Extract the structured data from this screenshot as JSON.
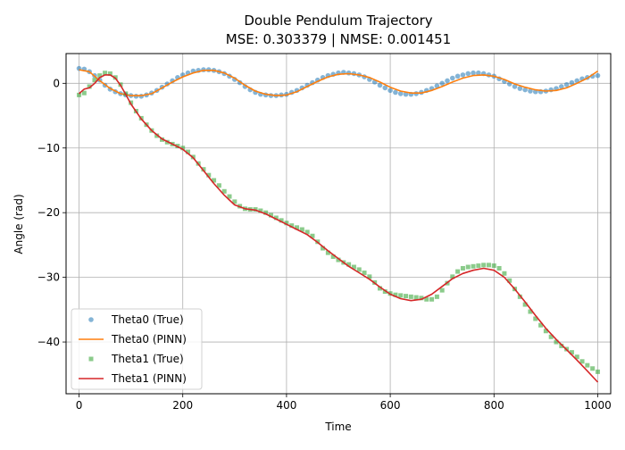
{
  "chart_data": {
    "type": "line",
    "title": "Double Pendulum Trajectory",
    "subtitle": "MSE: 0.303379 | NMSE: 0.001451",
    "xlabel": "Time",
    "ylabel": "Angle (rad)",
    "xlim": [
      -25,
      1025
    ],
    "ylim": [
      -48,
      4.6
    ],
    "xticks": [
      0,
      200,
      400,
      600,
      800,
      1000
    ],
    "yticks": [
      0,
      -10,
      -20,
      -30,
      -40
    ],
    "grid": true,
    "legend_position": "lower-left",
    "series": [
      {
        "name": "Theta0 (True)",
        "style": "markers",
        "color": "#1f77b4",
        "x": [
          0,
          10,
          20,
          30,
          40,
          50,
          60,
          70,
          80,
          90,
          100,
          110,
          120,
          130,
          140,
          150,
          160,
          170,
          180,
          190,
          200,
          210,
          220,
          230,
          240,
          250,
          260,
          270,
          280,
          290,
          300,
          310,
          320,
          330,
          340,
          350,
          360,
          370,
          380,
          390,
          400,
          410,
          420,
          430,
          440,
          450,
          460,
          470,
          480,
          490,
          500,
          510,
          520,
          530,
          540,
          550,
          560,
          570,
          580,
          590,
          600,
          610,
          620,
          630,
          640,
          650,
          660,
          670,
          680,
          690,
          700,
          710,
          720,
          730,
          740,
          750,
          760,
          770,
          780,
          790,
          800,
          810,
          820,
          830,
          840,
          850,
          860,
          870,
          880,
          890,
          900,
          910,
          920,
          930,
          940,
          950,
          960,
          970,
          980,
          990,
          1000
        ],
        "y": [
          2.3,
          2.2,
          1.8,
          1.2,
          0.5,
          -0.3,
          -0.9,
          -1.3,
          -1.6,
          -1.8,
          -1.9,
          -2.0,
          -2.0,
          -1.8,
          -1.5,
          -1.1,
          -0.6,
          -0.1,
          0.4,
          0.9,
          1.3,
          1.6,
          1.9,
          2.0,
          2.1,
          2.1,
          2.0,
          1.8,
          1.5,
          1.1,
          0.6,
          0.1,
          -0.5,
          -1.0,
          -1.4,
          -1.7,
          -1.8,
          -1.9,
          -1.9,
          -1.8,
          -1.7,
          -1.4,
          -1.1,
          -0.7,
          -0.3,
          0.1,
          0.5,
          0.9,
          1.2,
          1.4,
          1.6,
          1.7,
          1.6,
          1.5,
          1.3,
          1.0,
          0.6,
          0.2,
          -0.3,
          -0.7,
          -1.1,
          -1.4,
          -1.6,
          -1.7,
          -1.7,
          -1.6,
          -1.4,
          -1.1,
          -0.8,
          -0.4,
          0.0,
          0.4,
          0.8,
          1.1,
          1.3,
          1.5,
          1.6,
          1.6,
          1.5,
          1.3,
          1.1,
          0.7,
          0.3,
          -0.1,
          -0.5,
          -0.8,
          -1.0,
          -1.2,
          -1.3,
          -1.3,
          -1.2,
          -1.0,
          -0.8,
          -0.5,
          -0.2,
          0.1,
          0.4,
          0.7,
          0.9,
          1.1,
          1.2
        ]
      },
      {
        "name": "Theta0 (PINN)",
        "style": "line",
        "color": "#ff7f0e",
        "x": [
          0,
          20,
          40,
          60,
          80,
          100,
          120,
          140,
          160,
          180,
          200,
          220,
          240,
          260,
          280,
          300,
          320,
          340,
          360,
          380,
          400,
          420,
          440,
          460,
          480,
          500,
          520,
          540,
          560,
          580,
          600,
          620,
          640,
          660,
          680,
          700,
          720,
          740,
          760,
          780,
          800,
          820,
          840,
          860,
          880,
          900,
          920,
          940,
          960,
          980,
          1000
        ],
        "y": [
          2.1,
          1.8,
          0.4,
          -0.8,
          -1.6,
          -1.9,
          -1.9,
          -1.6,
          -0.7,
          0.2,
          1.0,
          1.6,
          2.0,
          2.0,
          1.6,
          0.8,
          -0.3,
          -1.2,
          -1.7,
          -1.9,
          -1.8,
          -1.3,
          -0.5,
          0.3,
          1.0,
          1.4,
          1.5,
          1.3,
          0.9,
          0.2,
          -0.6,
          -1.2,
          -1.5,
          -1.5,
          -1.1,
          -0.5,
          0.2,
          0.8,
          1.2,
          1.3,
          1.1,
          0.6,
          -0.1,
          -0.6,
          -1.0,
          -1.2,
          -1.1,
          -0.7,
          0.0,
          0.8,
          1.9
        ]
      },
      {
        "name": "Theta1 (True)",
        "style": "markers",
        "color": "#2ca02c",
        "x": [
          0,
          10,
          20,
          30,
          40,
          50,
          60,
          70,
          80,
          90,
          100,
          110,
          120,
          130,
          140,
          150,
          160,
          170,
          180,
          190,
          200,
          210,
          220,
          230,
          240,
          250,
          260,
          270,
          280,
          290,
          300,
          310,
          320,
          330,
          340,
          350,
          360,
          370,
          380,
          390,
          400,
          410,
          420,
          430,
          440,
          450,
          460,
          470,
          480,
          490,
          500,
          510,
          520,
          530,
          540,
          550,
          560,
          570,
          580,
          590,
          600,
          610,
          620,
          630,
          640,
          650,
          660,
          670,
          680,
          690,
          700,
          710,
          720,
          730,
          740,
          750,
          760,
          770,
          780,
          790,
          800,
          810,
          820,
          830,
          840,
          850,
          860,
          870,
          880,
          890,
          900,
          910,
          920,
          930,
          940,
          950,
          960,
          970,
          980,
          990,
          1000
        ],
        "y": [
          -1.8,
          -1.5,
          -0.5,
          0.5,
          1.2,
          1.6,
          1.5,
          0.9,
          -0.2,
          -1.6,
          -3.0,
          -4.3,
          -5.4,
          -6.4,
          -7.3,
          -8.1,
          -8.7,
          -9.1,
          -9.4,
          -9.7,
          -10.0,
          -10.6,
          -11.4,
          -12.4,
          -13.3,
          -14.2,
          -15.0,
          -15.8,
          -16.7,
          -17.5,
          -18.3,
          -19.0,
          -19.4,
          -19.5,
          -19.5,
          -19.7,
          -20.0,
          -20.4,
          -20.8,
          -21.2,
          -21.6,
          -22.0,
          -22.3,
          -22.6,
          -23.0,
          -23.6,
          -24.5,
          -25.5,
          -26.2,
          -26.8,
          -27.3,
          -27.7,
          -28.0,
          -28.4,
          -28.8,
          -29.3,
          -29.9,
          -30.8,
          -31.7,
          -32.2,
          -32.5,
          -32.7,
          -32.8,
          -32.9,
          -33.0,
          -33.1,
          -33.2,
          -33.4,
          -33.4,
          -33.0,
          -32.0,
          -30.9,
          -29.9,
          -29.1,
          -28.6,
          -28.4,
          -28.3,
          -28.2,
          -28.1,
          -28.1,
          -28.2,
          -28.6,
          -29.4,
          -30.5,
          -31.8,
          -33.0,
          -34.2,
          -35.3,
          -36.4,
          -37.4,
          -38.3,
          -39.2,
          -40.0,
          -40.6,
          -41.1,
          -41.6,
          -42.3,
          -43.0,
          -43.6,
          -44.1,
          -44.6
        ]
      },
      {
        "name": "Theta1 (PINN)",
        "style": "line",
        "color": "#d62728",
        "x": [
          0,
          10,
          20,
          30,
          40,
          50,
          60,
          70,
          80,
          90,
          100,
          120,
          140,
          160,
          180,
          200,
          220,
          240,
          260,
          280,
          300,
          320,
          340,
          360,
          380,
          400,
          420,
          440,
          460,
          480,
          500,
          520,
          540,
          560,
          580,
          600,
          620,
          640,
          660,
          680,
          700,
          720,
          740,
          760,
          780,
          800,
          820,
          840,
          860,
          880,
          900,
          920,
          940,
          960,
          980,
          1000
        ],
        "y": [
          -1.6,
          -0.9,
          -0.7,
          0.0,
          0.9,
          1.3,
          1.3,
          0.8,
          -0.3,
          -1.7,
          -3.2,
          -5.5,
          -7.3,
          -8.6,
          -9.4,
          -10.2,
          -11.5,
          -13.5,
          -15.5,
          -17.3,
          -18.8,
          -19.4,
          -19.6,
          -20.2,
          -21.0,
          -21.8,
          -22.6,
          -23.4,
          -24.6,
          -25.9,
          -27.1,
          -28.3,
          -29.3,
          -30.3,
          -31.5,
          -32.6,
          -33.3,
          -33.6,
          -33.4,
          -32.6,
          -31.4,
          -30.2,
          -29.4,
          -28.9,
          -28.6,
          -28.9,
          -30.0,
          -31.8,
          -33.8,
          -35.9,
          -37.9,
          -39.6,
          -41.2,
          -42.8,
          -44.5,
          -46.2
        ]
      }
    ]
  }
}
